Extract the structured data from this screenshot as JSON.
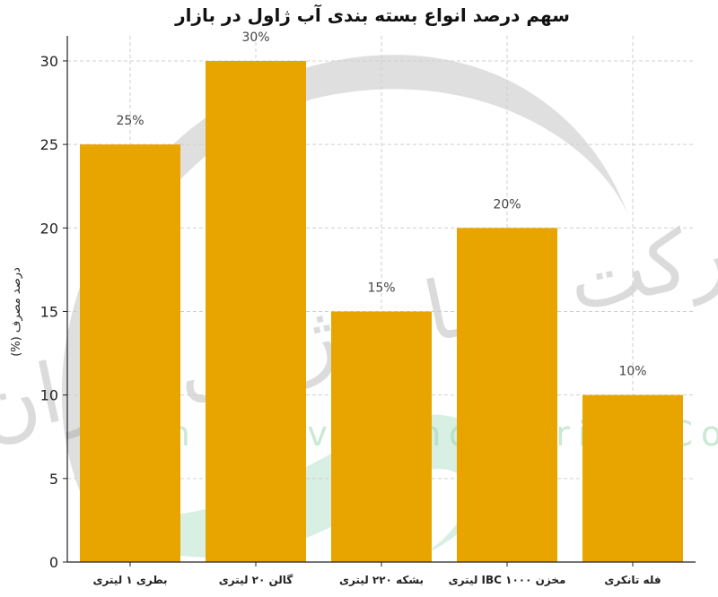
{
  "chart_data": {
    "type": "bar",
    "title": "سهم درصد انواع بسته بندی آب ژاول در بازار",
    "xlabel": "",
    "ylabel": "درصد مصرف (%)",
    "categories": [
      "بطری ۱ لیتری",
      "گالن ۲۰ لیتری",
      "بشکه ۲۲۰ لیتری",
      "مخزن IBC ۱۰۰۰ لیتری",
      "فله تانکری"
    ],
    "values": [
      25,
      30,
      15,
      20,
      10
    ],
    "data_labels": [
      "25%",
      "30%",
      "15%",
      "20%",
      "10%"
    ],
    "ylim": [
      0,
      31.5
    ],
    "yticks": [
      "0",
      "5",
      "10",
      "15",
      "20",
      "25",
      "30"
    ],
    "grid": true,
    "colors": {
      "bar": "#E8A500",
      "grid": "#cfcfcf",
      "axis": "#222222"
    }
  },
  "watermark": {
    "persian_text": "شرکت صنایع ژاول ایران",
    "english_text": "Iran Zhavel Industries Co"
  }
}
